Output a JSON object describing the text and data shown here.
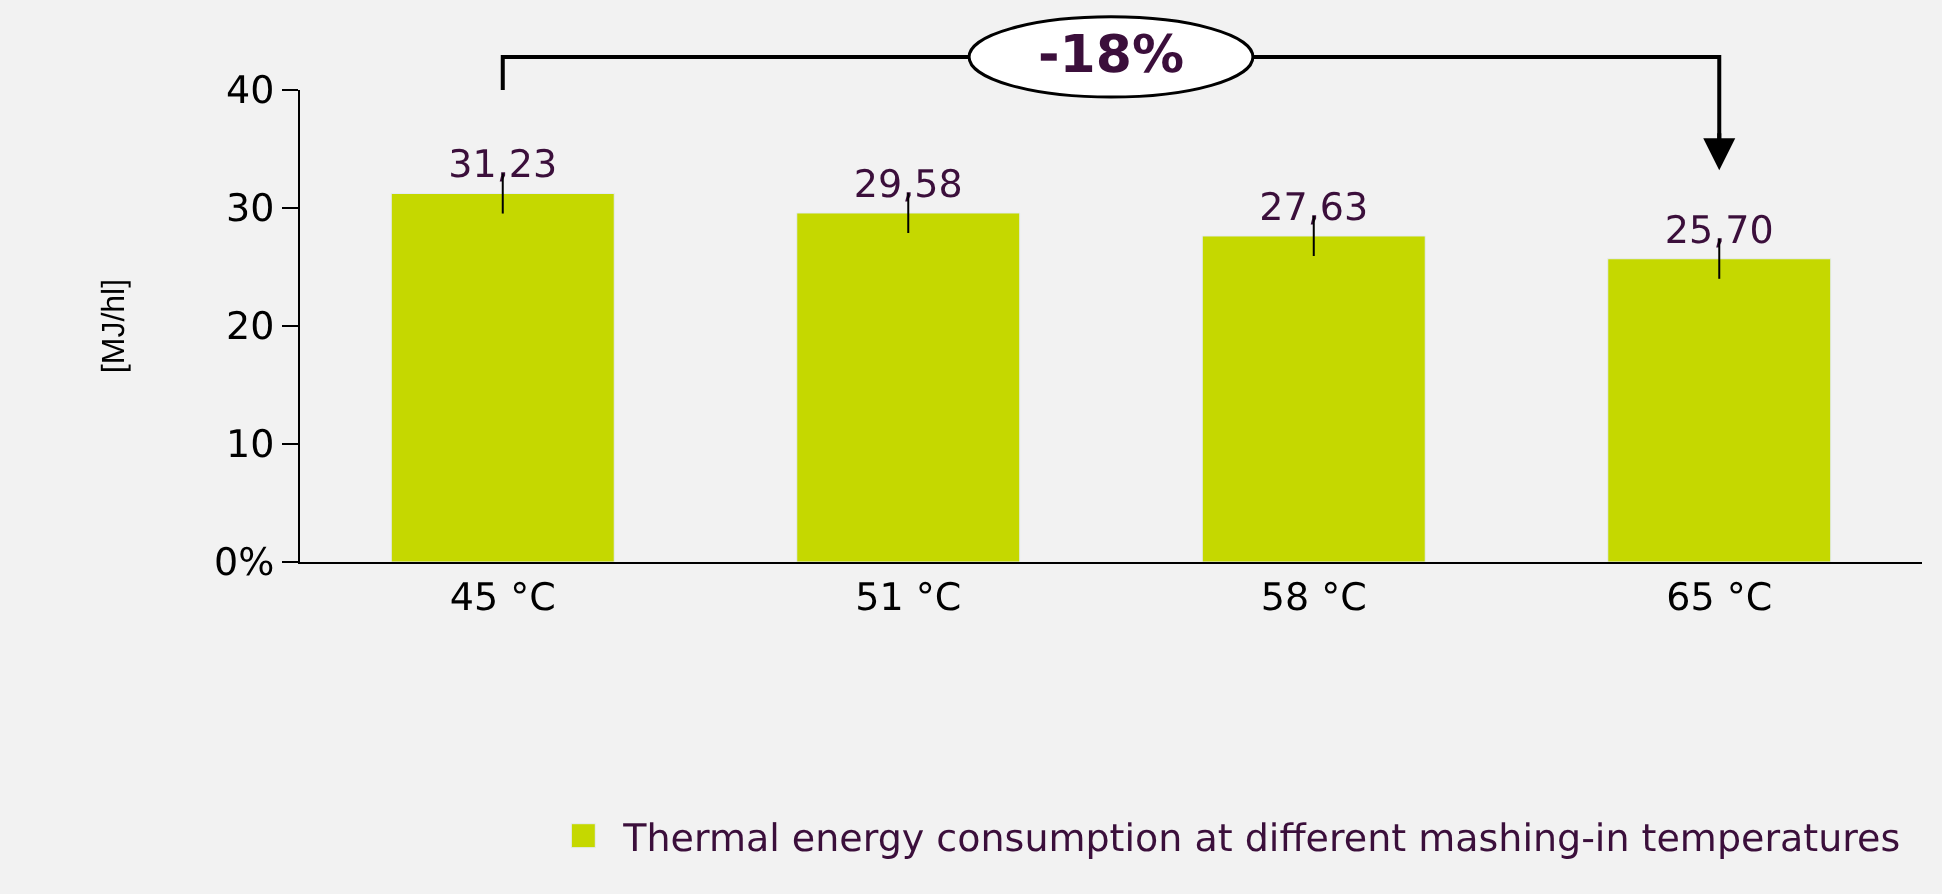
{
  "chart_data": {
    "type": "bar",
    "ylabel": "[MJ/hl]",
    "categories": [
      "45 °C",
      "51 °C",
      "58 °C",
      "65 °C"
    ],
    "series": [
      {
        "name": "Thermal energy consumption at different mashing-in temperatures",
        "color": "#c5d800",
        "values": [
          31.23,
          29.58,
          27.63,
          25.7
        ],
        "value_labels": [
          "31,23",
          "29,58",
          "27,63",
          "25,70"
        ],
        "errors": [
          1.7,
          1.7,
          1.7,
          1.7
        ]
      }
    ],
    "ylim": [
      0,
      40
    ],
    "yticks": [
      {
        "value": 0,
        "label": "0%"
      },
      10,
      20,
      30,
      40
    ],
    "grid": false,
    "legend": "bottom",
    "annotations": [
      "-18%"
    ]
  }
}
